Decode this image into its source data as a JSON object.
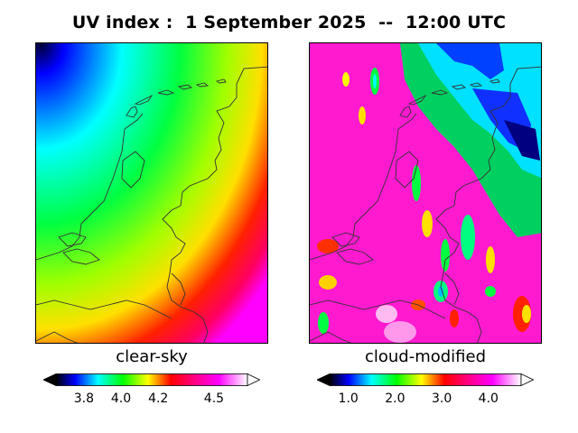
{
  "title": "UV index :  1 September 2025  --  12:00 UTC",
  "panels": [
    {
      "label": "clear-sky",
      "colorbar": {
        "min": 3.65,
        "max": 4.68,
        "ticks": [
          3.8,
          4.0,
          4.2,
          4.5
        ],
        "tick_labels": [
          "3.8",
          "4.0",
          "4.2",
          "4.5"
        ]
      }
    },
    {
      "label": "cloud-modified",
      "colorbar": {
        "min": 0.6,
        "max": 4.7,
        "ticks": [
          1.0,
          2.0,
          3.0,
          4.0
        ],
        "tick_labels": [
          "1.0",
          "2.0",
          "3.0",
          "4.0"
        ]
      }
    }
  ],
  "colors": {
    "extend_low": "#000000",
    "extend_high": "#ffffff",
    "coastline": "#333333"
  }
}
